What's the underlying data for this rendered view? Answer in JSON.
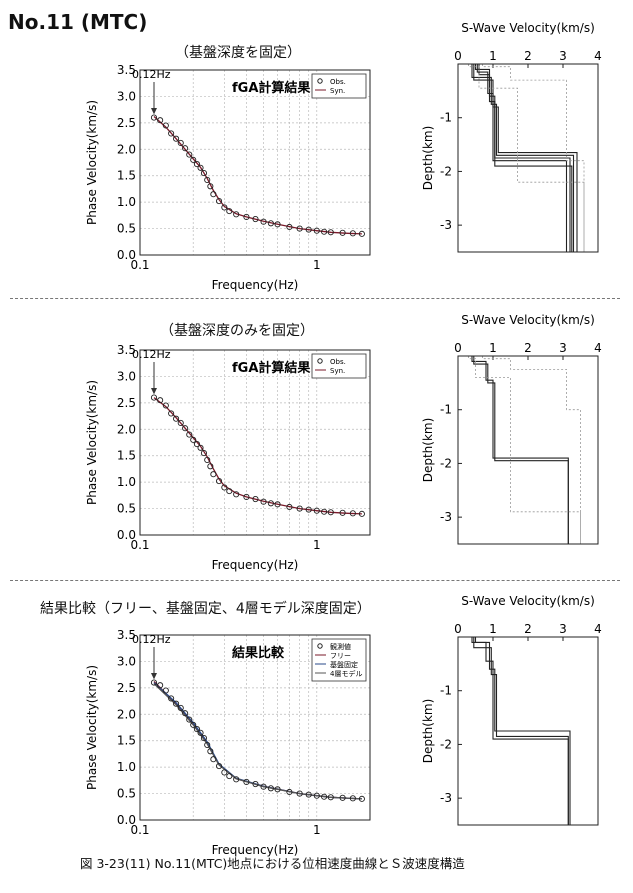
{
  "page": {
    "title": "No.11 (MTC)",
    "caption": "図 3-23(11)  No.11(MTC)地点における位相速度曲線とＳ波速度構造"
  },
  "sections": [
    {
      "subtitle": "（基盤深度を固定）",
      "fig_title": "fGA計算結果",
      "legend": [
        "Obs.",
        "Syn."
      ],
      "arrow_label": "0.12Hz"
    },
    {
      "subtitle": "（基盤深度のみを固定）",
      "fig_title": "fGA計算結果",
      "legend": [
        "Obs.",
        "Syn."
      ],
      "arrow_label": "0.12Hz"
    },
    {
      "subtitle": "結果比較（フリー、基盤固定、4層モデル深度固定）",
      "fig_title": "結果比較",
      "legend": [
        "観測値",
        "フリー",
        "基盤固定",
        "4層モデル"
      ],
      "arrow_label": "0.12Hz"
    }
  ],
  "colors": {
    "obs_marker": "#222222",
    "syn_line": "#7a1a2a",
    "syn_blue": "#2a4a8a",
    "vs_range": "#999999"
  },
  "chart_data": [
    {
      "type": "scatter",
      "xlabel": "Frequency(Hz)",
      "ylabel": "Phase Velocity(km/s)",
      "xscale": "log",
      "xlim": [
        0.1,
        2.0
      ],
      "ylim": [
        0.0,
        3.5
      ],
      "xticks": [
        0.1,
        1
      ],
      "yticks": [
        0.0,
        0.5,
        1.0,
        1.5,
        2.0,
        2.5,
        3.0,
        3.5
      ],
      "series": [
        {
          "name": "Obs.",
          "x": [
            0.12,
            0.13,
            0.14,
            0.15,
            0.16,
            0.17,
            0.18,
            0.19,
            0.2,
            0.21,
            0.22,
            0.23,
            0.24,
            0.25,
            0.26,
            0.28,
            0.3,
            0.32,
            0.35,
            0.4,
            0.45,
            0.5,
            0.55,
            0.6,
            0.7,
            0.8,
            0.9,
            1.0,
            1.1,
            1.2,
            1.4,
            1.6,
            1.8
          ],
          "y": [
            2.6,
            2.55,
            2.45,
            2.3,
            2.2,
            2.12,
            2.02,
            1.9,
            1.8,
            1.72,
            1.65,
            1.55,
            1.42,
            1.3,
            1.15,
            1.02,
            0.9,
            0.83,
            0.77,
            0.72,
            0.68,
            0.63,
            0.6,
            0.58,
            0.53,
            0.5,
            0.48,
            0.46,
            0.44,
            0.43,
            0.42,
            0.41,
            0.4
          ]
        },
        {
          "name": "Syn.",
          "x": [
            0.12,
            0.14,
            0.16,
            0.18,
            0.2,
            0.22,
            0.24,
            0.26,
            0.28,
            0.3,
            0.35,
            0.4,
            0.5,
            0.6,
            0.8,
            1.0,
            1.2,
            1.5,
            1.8
          ],
          "y": [
            2.62,
            2.42,
            2.2,
            2.0,
            1.82,
            1.66,
            1.45,
            1.22,
            1.05,
            0.92,
            0.78,
            0.72,
            0.64,
            0.58,
            0.5,
            0.46,
            0.43,
            0.41,
            0.4
          ]
        }
      ]
    },
    {
      "type": "line",
      "title": "S-Wave Velocity(km/s)",
      "ylabel": "Depth(km)",
      "xlim": [
        0,
        4
      ],
      "ylim": [
        -3.5,
        0
      ],
      "xticks": [
        0,
        1,
        2,
        3,
        4
      ],
      "yticks": [
        -1,
        -2,
        -3
      ],
      "series": [
        {
          "vs": [
            0.5,
            0.9,
            1.05,
            3.2
          ],
          "z": [
            -0.1,
            -0.6,
            -1.75,
            -3.5
          ]
        },
        {
          "vs": [
            0.4,
            0.95,
            1.1,
            3.3
          ],
          "z": [
            -0.25,
            -0.75,
            -1.7,
            -3.5
          ]
        },
        {
          "vs": [
            0.55,
            0.85,
            1.0,
            3.1
          ],
          "z": [
            -0.15,
            -0.55,
            -1.8,
            -3.5
          ]
        },
        {
          "vs": [
            0.45,
            1.0,
            1.15,
            3.4
          ],
          "z": [
            -0.3,
            -0.8,
            -1.65,
            -3.5
          ]
        },
        {
          "vs": [
            0.6,
            0.9,
            1.05,
            3.25
          ],
          "z": [
            -0.2,
            -0.7,
            -1.9,
            -3.5
          ]
        },
        {
          "vs": [
            0.3,
            0.6,
            1.7,
            3.6
          ],
          "z": [
            -0.05,
            -0.45,
            -2.2,
            -3.5
          ],
          "range": true
        },
        {
          "vs": [
            0.7,
            1.5,
            3.1,
            3.6
          ],
          "z": [
            -0.05,
            -0.3,
            -1.8,
            -3.5
          ],
          "range": true
        }
      ]
    },
    {
      "type": "scatter",
      "xlabel": "Frequency(Hz)",
      "ylabel": "Phase Velocity(km/s)",
      "xscale": "log",
      "xlim": [
        0.1,
        2.0
      ],
      "ylim": [
        0.0,
        3.5
      ],
      "xticks": [
        0.1,
        1
      ],
      "yticks": [
        0.0,
        0.5,
        1.0,
        1.5,
        2.0,
        2.5,
        3.0,
        3.5
      ],
      "series": [
        {
          "name": "Obs.",
          "x": [
            0.12,
            0.13,
            0.14,
            0.15,
            0.16,
            0.17,
            0.18,
            0.19,
            0.2,
            0.21,
            0.22,
            0.23,
            0.24,
            0.25,
            0.26,
            0.28,
            0.3,
            0.32,
            0.35,
            0.4,
            0.45,
            0.5,
            0.55,
            0.6,
            0.7,
            0.8,
            0.9,
            1.0,
            1.1,
            1.2,
            1.4,
            1.6,
            1.8
          ],
          "y": [
            2.6,
            2.55,
            2.45,
            2.3,
            2.2,
            2.12,
            2.02,
            1.9,
            1.8,
            1.72,
            1.65,
            1.55,
            1.42,
            1.3,
            1.15,
            1.02,
            0.9,
            0.83,
            0.77,
            0.72,
            0.68,
            0.63,
            0.6,
            0.58,
            0.53,
            0.5,
            0.48,
            0.46,
            0.44,
            0.43,
            0.42,
            0.41,
            0.4
          ]
        },
        {
          "name": "Syn.",
          "x": [
            0.12,
            0.14,
            0.16,
            0.18,
            0.2,
            0.22,
            0.24,
            0.26,
            0.28,
            0.3,
            0.35,
            0.4,
            0.5,
            0.6,
            0.8,
            1.0,
            1.2,
            1.5,
            1.8
          ],
          "y": [
            2.6,
            2.43,
            2.22,
            2.02,
            1.84,
            1.68,
            1.48,
            1.25,
            1.06,
            0.93,
            0.79,
            0.72,
            0.64,
            0.58,
            0.5,
            0.46,
            0.43,
            0.41,
            0.4
          ]
        }
      ]
    },
    {
      "type": "line",
      "title": "S-Wave Velocity(km/s)",
      "ylabel": "Depth(km)",
      "xlim": [
        0,
        4
      ],
      "ylim": [
        -3.5,
        0
      ],
      "xticks": [
        0,
        1,
        2,
        3,
        4
      ],
      "yticks": [
        -1,
        -2,
        -3
      ],
      "series": [
        {
          "vs": [
            0.4,
            0.8,
            1.0,
            3.15
          ],
          "z": [
            -0.1,
            -0.45,
            -1.9,
            -3.5
          ]
        },
        {
          "vs": [
            0.45,
            0.85,
            1.05,
            3.15
          ],
          "z": [
            -0.15,
            -0.5,
            -1.95,
            -3.5
          ]
        },
        {
          "vs": [
            0.3,
            0.5,
            1.5,
            3.5
          ],
          "z": [
            -0.05,
            -0.4,
            -2.9,
            -3.5
          ],
          "range": true
        },
        {
          "vs": [
            0.7,
            1.5,
            3.1,
            3.5
          ],
          "z": [
            -0.05,
            -0.25,
            -1.0,
            -3.5
          ],
          "range": true
        }
      ]
    },
    {
      "type": "scatter",
      "xlabel": "Frequency(Hz)",
      "ylabel": "Phase Velocity(km/s)",
      "xscale": "log",
      "xlim": [
        0.1,
        2.0
      ],
      "ylim": [
        0.0,
        3.5
      ],
      "xticks": [
        0.1,
        1
      ],
      "yticks": [
        0.0,
        0.5,
        1.0,
        1.5,
        2.0,
        2.5,
        3.0,
        3.5
      ],
      "series": [
        {
          "name": "観測値",
          "x": [
            0.12,
            0.13,
            0.14,
            0.15,
            0.16,
            0.17,
            0.18,
            0.19,
            0.2,
            0.21,
            0.22,
            0.23,
            0.24,
            0.25,
            0.26,
            0.28,
            0.3,
            0.32,
            0.35,
            0.4,
            0.45,
            0.5,
            0.55,
            0.6,
            0.7,
            0.8,
            0.9,
            1.0,
            1.1,
            1.2,
            1.4,
            1.6,
            1.8
          ],
          "y": [
            2.6,
            2.55,
            2.45,
            2.3,
            2.2,
            2.12,
            2.02,
            1.9,
            1.8,
            1.72,
            1.65,
            1.55,
            1.42,
            1.3,
            1.15,
            1.02,
            0.9,
            0.83,
            0.77,
            0.72,
            0.68,
            0.63,
            0.6,
            0.58,
            0.53,
            0.5,
            0.48,
            0.46,
            0.44,
            0.43,
            0.42,
            0.41,
            0.4
          ]
        },
        {
          "name": "フリー",
          "x": [
            0.12,
            0.16,
            0.2,
            0.24,
            0.28,
            0.35,
            0.5,
            0.8,
            1.2,
            1.8
          ],
          "y": [
            2.62,
            2.2,
            1.82,
            1.45,
            1.05,
            0.78,
            0.64,
            0.5,
            0.43,
            0.4
          ]
        },
        {
          "name": "基盤固定",
          "x": [
            0.12,
            0.16,
            0.2,
            0.24,
            0.28,
            0.35,
            0.5,
            0.8,
            1.2,
            1.8
          ],
          "y": [
            2.6,
            2.22,
            1.84,
            1.48,
            1.06,
            0.79,
            0.64,
            0.5,
            0.43,
            0.4
          ]
        },
        {
          "name": "4層モデル",
          "x": [
            0.12,
            0.16,
            0.2,
            0.24,
            0.28,
            0.35,
            0.5,
            0.8,
            1.2,
            1.8
          ],
          "y": [
            2.58,
            2.18,
            1.8,
            1.44,
            1.04,
            0.78,
            0.63,
            0.5,
            0.43,
            0.4
          ]
        }
      ]
    },
    {
      "type": "line",
      "title": "S-Wave Velocity(km/s)",
      "ylabel": "Depth(km)",
      "xlim": [
        0,
        4
      ],
      "ylim": [
        -3.5,
        0
      ],
      "xticks": [
        0,
        1,
        2,
        3,
        4
      ],
      "yticks": [
        -1,
        -2,
        -3
      ],
      "series": [
        {
          "vs": [
            0.5,
            0.9,
            1.05,
            3.2
          ],
          "z": [
            -0.1,
            -0.6,
            -1.75,
            -3.5
          ]
        },
        {
          "vs": [
            0.4,
            0.8,
            1.0,
            3.15
          ],
          "z": [
            -0.1,
            -0.45,
            -1.9,
            -3.5
          ]
        },
        {
          "vs": [
            0.45,
            0.95,
            1.1,
            3.15
          ],
          "z": [
            -0.2,
            -0.7,
            -1.85,
            -3.5
          ]
        }
      ]
    }
  ]
}
